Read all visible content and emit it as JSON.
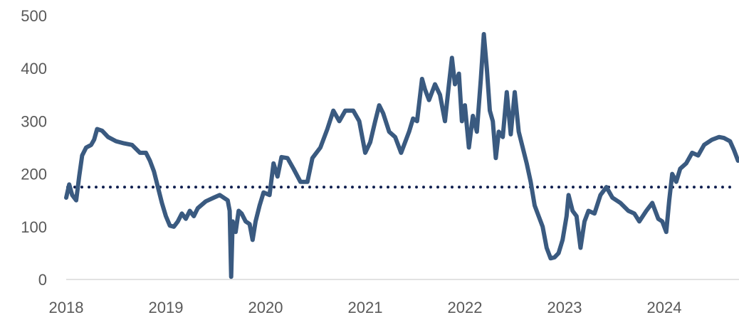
{
  "chart_data": {
    "type": "line",
    "title": "",
    "xlabel": "",
    "ylabel": "",
    "ylim": [
      0,
      500
    ],
    "xlim": [
      2018.0,
      2024.75
    ],
    "x_tick_labels": [
      "2018",
      "2019",
      "2020",
      "2021",
      "2022",
      "2023",
      "2024"
    ],
    "x_tick_values": [
      2018,
      2019,
      2020,
      2021,
      2022,
      2023,
      2024
    ],
    "y_tick_labels": [
      "0",
      "100",
      "200",
      "300",
      "400",
      "500"
    ],
    "y_tick_values": [
      0,
      100,
      200,
      300,
      400,
      500
    ],
    "grid": false,
    "legend": "none",
    "reference_lines": [
      {
        "y": 175,
        "style": "dotted",
        "color": "#0f1f4f"
      }
    ],
    "series": [
      {
        "color": "#3a5a80",
        "points": [
          [
            2018.0,
            155
          ],
          [
            2018.03,
            180
          ],
          [
            2018.06,
            160
          ],
          [
            2018.1,
            150
          ],
          [
            2018.13,
            195
          ],
          [
            2018.16,
            235
          ],
          [
            2018.2,
            250
          ],
          [
            2018.25,
            255
          ],
          [
            2018.28,
            265
          ],
          [
            2018.31,
            285
          ],
          [
            2018.36,
            282
          ],
          [
            2018.42,
            270
          ],
          [
            2018.5,
            262
          ],
          [
            2018.58,
            258
          ],
          [
            2018.66,
            255
          ],
          [
            2018.74,
            240
          ],
          [
            2018.8,
            240
          ],
          [
            2018.84,
            225
          ],
          [
            2018.88,
            205
          ],
          [
            2018.92,
            175
          ],
          [
            2018.96,
            145
          ],
          [
            2019.0,
            120
          ],
          [
            2019.04,
            102
          ],
          [
            2019.08,
            100
          ],
          [
            2019.12,
            110
          ],
          [
            2019.16,
            125
          ],
          [
            2019.2,
            115
          ],
          [
            2019.24,
            130
          ],
          [
            2019.28,
            120
          ],
          [
            2019.32,
            135
          ],
          [
            2019.4,
            148
          ],
          [
            2019.48,
            155
          ],
          [
            2019.54,
            160
          ],
          [
            2019.58,
            155
          ],
          [
            2019.62,
            150
          ],
          [
            2019.64,
            130
          ],
          [
            2019.655,
            5
          ],
          [
            2019.67,
            110
          ],
          [
            2019.7,
            90
          ],
          [
            2019.73,
            130
          ],
          [
            2019.76,
            125
          ],
          [
            2019.8,
            110
          ],
          [
            2019.84,
            105
          ],
          [
            2019.87,
            75
          ],
          [
            2019.9,
            110
          ],
          [
            2019.94,
            140
          ],
          [
            2019.98,
            165
          ],
          [
            2020.04,
            160
          ],
          [
            2020.08,
            220
          ],
          [
            2020.12,
            195
          ],
          [
            2020.16,
            232
          ],
          [
            2020.22,
            230
          ],
          [
            2020.28,
            210
          ],
          [
            2020.35,
            185
          ],
          [
            2020.42,
            185
          ],
          [
            2020.47,
            230
          ],
          [
            2020.55,
            250
          ],
          [
            2020.62,
            285
          ],
          [
            2020.68,
            320
          ],
          [
            2020.74,
            300
          ],
          [
            2020.8,
            320
          ],
          [
            2020.88,
            320
          ],
          [
            2020.94,
            300
          ],
          [
            2021.0,
            240
          ],
          [
            2021.05,
            260
          ],
          [
            2021.1,
            300
          ],
          [
            2021.14,
            330
          ],
          [
            2021.18,
            315
          ],
          [
            2021.24,
            280
          ],
          [
            2021.3,
            270
          ],
          [
            2021.36,
            240
          ],
          [
            2021.4,
            260
          ],
          [
            2021.44,
            280
          ],
          [
            2021.48,
            305
          ],
          [
            2021.52,
            300
          ],
          [
            2021.57,
            380
          ],
          [
            2021.6,
            360
          ],
          [
            2021.64,
            340
          ],
          [
            2021.7,
            370
          ],
          [
            2021.75,
            350
          ],
          [
            2021.8,
            300
          ],
          [
            2021.84,
            370
          ],
          [
            2021.87,
            420
          ],
          [
            2021.9,
            370
          ],
          [
            2021.94,
            390
          ],
          [
            2021.97,
            300
          ],
          [
            2022.0,
            330
          ],
          [
            2022.04,
            250
          ],
          [
            2022.08,
            310
          ],
          [
            2022.12,
            280
          ],
          [
            2022.16,
            380
          ],
          [
            2022.19,
            465
          ],
          [
            2022.22,
            400
          ],
          [
            2022.25,
            320
          ],
          [
            2022.28,
            300
          ],
          [
            2022.31,
            230
          ],
          [
            2022.34,
            280
          ],
          [
            2022.38,
            270
          ],
          [
            2022.42,
            355
          ],
          [
            2022.46,
            275
          ],
          [
            2022.5,
            355
          ],
          [
            2022.54,
            280
          ],
          [
            2022.58,
            250
          ],
          [
            2022.62,
            220
          ],
          [
            2022.66,
            185
          ],
          [
            2022.7,
            140
          ],
          [
            2022.74,
            120
          ],
          [
            2022.78,
            100
          ],
          [
            2022.82,
            60
          ],
          [
            2022.86,
            40
          ],
          [
            2022.9,
            42
          ],
          [
            2022.94,
            50
          ],
          [
            2022.98,
            75
          ],
          [
            2023.02,
            120
          ],
          [
            2023.04,
            160
          ],
          [
            2023.08,
            130
          ],
          [
            2023.12,
            120
          ],
          [
            2023.16,
            60
          ],
          [
            2023.2,
            110
          ],
          [
            2023.24,
            130
          ],
          [
            2023.3,
            125
          ],
          [
            2023.36,
            160
          ],
          [
            2023.42,
            175
          ],
          [
            2023.48,
            155
          ],
          [
            2023.56,
            145
          ],
          [
            2023.64,
            130
          ],
          [
            2023.7,
            125
          ],
          [
            2023.75,
            110
          ],
          [
            2023.82,
            130
          ],
          [
            2023.88,
            145
          ],
          [
            2023.94,
            115
          ],
          [
            2023.98,
            110
          ],
          [
            2024.02,
            90
          ],
          [
            2024.05,
            150
          ],
          [
            2024.08,
            200
          ],
          [
            2024.12,
            185
          ],
          [
            2024.16,
            210
          ],
          [
            2024.22,
            220
          ],
          [
            2024.28,
            240
          ],
          [
            2024.34,
            235
          ],
          [
            2024.4,
            255
          ],
          [
            2024.48,
            265
          ],
          [
            2024.55,
            270
          ],
          [
            2024.6,
            268
          ],
          [
            2024.66,
            262
          ],
          [
            2024.7,
            245
          ],
          [
            2024.74,
            225
          ]
        ]
      }
    ]
  }
}
